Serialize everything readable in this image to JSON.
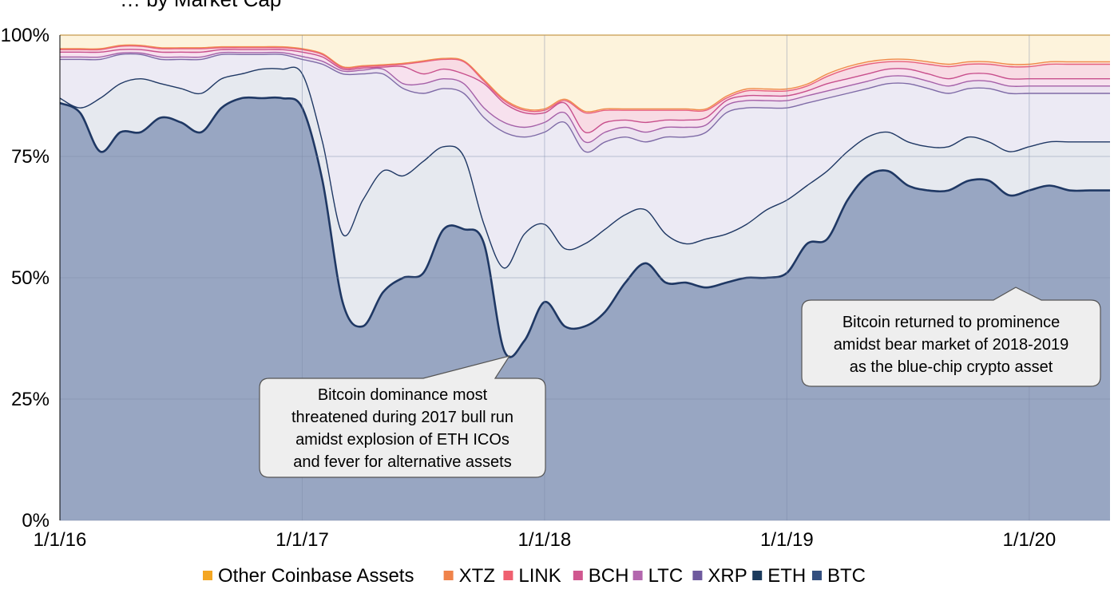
{
  "chart_data": {
    "type": "area",
    "stacked": true,
    "title_partial": "… by Market Cap",
    "ylim": [
      0,
      100
    ],
    "yticks": [
      "0%",
      "25%",
      "50%",
      "75%",
      "100%"
    ],
    "xticks": [
      "1/1/16",
      "1/1/17",
      "1/1/18",
      "1/1/19",
      "1/1/20"
    ],
    "x": [
      "1/1/16",
      "2/1/16",
      "3/1/16",
      "4/1/16",
      "5/1/16",
      "6/1/16",
      "7/1/16",
      "8/1/16",
      "9/1/16",
      "10/1/16",
      "11/1/16",
      "12/1/16",
      "1/1/17",
      "2/1/17",
      "3/1/17",
      "4/1/17",
      "5/1/17",
      "6/1/17",
      "7/1/17",
      "8/1/17",
      "9/1/17",
      "10/1/17",
      "11/1/17",
      "12/1/17",
      "1/1/18",
      "2/1/18",
      "3/1/18",
      "4/1/18",
      "5/1/18",
      "6/1/18",
      "7/1/18",
      "8/1/18",
      "9/1/18",
      "10/1/18",
      "11/1/18",
      "12/1/18",
      "1/1/19",
      "2/1/19",
      "3/1/19",
      "4/1/19",
      "5/1/19",
      "6/1/19",
      "7/1/19",
      "8/1/19",
      "9/1/19",
      "10/1/19",
      "11/1/19",
      "12/1/19",
      "1/1/20",
      "2/1/20",
      "3/1/20",
      "4/1/20",
      "5/1/20"
    ],
    "legend_position": "bottom",
    "grid": true,
    "series_cumulative_top": [
      {
        "name": "BTC",
        "color": "#98a6c2",
        "line": "#1f3864",
        "values": [
          86,
          84,
          76,
          80,
          80,
          83,
          82,
          80,
          85,
          87,
          87,
          87,
          85,
          70,
          45,
          40,
          47,
          50,
          51,
          60,
          60,
          57,
          35,
          37,
          45,
          40,
          40,
          43,
          49,
          53,
          49,
          49,
          48,
          49,
          50,
          50,
          51,
          57,
          58,
          66,
          71,
          72,
          69,
          68,
          68,
          70,
          70,
          67,
          68,
          69,
          68,
          68,
          68
        ]
      },
      {
        "name": "ETH",
        "color": "#e6e9ef",
        "line": "#1f3864",
        "values": [
          87,
          85,
          87,
          90,
          91,
          90,
          89,
          88,
          91,
          92,
          93,
          93,
          92,
          78,
          59,
          66,
          72,
          71,
          74,
          77,
          75,
          61,
          52,
          59,
          61,
          56,
          57,
          60,
          63,
          64,
          59,
          57,
          58,
          59,
          61,
          64,
          66,
          69,
          72,
          76,
          79,
          80,
          78,
          77,
          77,
          79,
          78,
          76,
          77,
          78,
          78,
          78,
          78
        ]
      },
      {
        "name": "XRP",
        "color": "#eceaf4",
        "line": "#7e6aa6",
        "values": [
          95,
          95,
          95,
          96,
          96,
          95,
          95,
          95,
          96,
          96,
          96,
          96,
          95,
          94,
          92,
          92,
          92,
          89,
          88,
          89,
          88,
          83,
          80,
          79,
          80,
          82,
          76,
          78,
          79,
          78,
          79,
          79,
          80,
          84,
          85,
          85,
          85,
          86,
          87,
          88,
          89,
          90,
          90,
          89,
          88,
          89,
          89,
          88,
          88,
          88,
          88,
          88,
          88
        ]
      },
      {
        "name": "LTC",
        "color": "#ece3f0",
        "line": "#a560a8",
        "values": [
          95.5,
          95.5,
          95.5,
          96.3,
          96.3,
          95.5,
          95.5,
          95.5,
          96.4,
          96.4,
          96.4,
          96.4,
          95.6,
          94.6,
          92.6,
          92.8,
          93,
          90,
          90,
          91,
          90,
          85,
          82,
          81,
          82,
          84,
          78,
          80,
          81,
          80,
          81,
          81,
          81.5,
          85.5,
          86.5,
          86.5,
          86.5,
          87.5,
          88.5,
          89.5,
          90.5,
          91.5,
          91.5,
          90.5,
          89.5,
          90.5,
          90.5,
          89.5,
          89.5,
          89.5,
          89.5,
          89.5,
          89.5
        ]
      },
      {
        "name": "BCH",
        "color": "#f7e1ee",
        "line": "#c84f8c",
        "values": [
          96.5,
          96.5,
          96.5,
          97,
          97,
          96.5,
          96.5,
          96.5,
          97,
          97,
          97,
          97,
          96.5,
          95.5,
          93,
          93.2,
          93.4,
          93.5,
          92,
          93,
          92,
          90,
          86,
          84,
          84,
          86,
          80,
          82,
          82.5,
          82,
          82.5,
          82.5,
          83,
          86.5,
          87.5,
          87.5,
          87.5,
          88.5,
          90,
          91,
          92,
          93,
          93,
          92,
          91,
          92,
          92,
          91,
          91,
          91,
          91,
          91,
          91
        ]
      },
      {
        "name": "LINK",
        "color": "#f8dbe4",
        "line": "#e8607e",
        "values": [
          97,
          97,
          97,
          97.7,
          97.7,
          97.2,
          97.2,
          97.2,
          97.4,
          97.4,
          97.4,
          97.4,
          97,
          96,
          93.3,
          93.5,
          93.7,
          94,
          94.5,
          95,
          94.5,
          90.5,
          86.5,
          84.5,
          84.5,
          86.5,
          84,
          84.5,
          84.5,
          84.5,
          84.5,
          84.5,
          84.5,
          87,
          88.5,
          88.5,
          88.5,
          89.5,
          91.5,
          93,
          94,
          94.5,
          94.5,
          94,
          93.5,
          94,
          94,
          93.5,
          93.5,
          94,
          94,
          94,
          94
        ]
      },
      {
        "name": "XTZ",
        "color": "#fbe5d8",
        "line": "#f08a4b",
        "values": [
          97.2,
          97.2,
          97.2,
          97.9,
          97.9,
          97.4,
          97.4,
          97.4,
          97.6,
          97.6,
          97.6,
          97.6,
          97.2,
          96.2,
          93.5,
          93.7,
          93.9,
          94.2,
          94.7,
          95.2,
          94.7,
          90.8,
          86.8,
          84.8,
          84.8,
          86.8,
          84.3,
          84.8,
          84.8,
          84.8,
          84.8,
          84.8,
          84.8,
          87.4,
          88.9,
          88.9,
          88.9,
          89.9,
          92,
          93.5,
          94.5,
          95,
          95,
          94.5,
          94,
          94.5,
          94.5,
          94,
          94,
          94.5,
          94.5,
          94.5,
          94.5
        ]
      },
      {
        "name": "Other Coinbase Assets",
        "color": "#fdf3dc",
        "line": "#f5b94a",
        "values": [
          100,
          100,
          100,
          100,
          100,
          100,
          100,
          100,
          100,
          100,
          100,
          100,
          100,
          100,
          100,
          100,
          100,
          100,
          100,
          100,
          100,
          100,
          100,
          100,
          100,
          100,
          100,
          100,
          100,
          100,
          100,
          100,
          100,
          100,
          100,
          100,
          100,
          100,
          100,
          100,
          100,
          100,
          100,
          100,
          100,
          100,
          100,
          100,
          100,
          100,
          100,
          100,
          100
        ]
      }
    ],
    "legend": [
      {
        "name": "Other Coinbase Assets",
        "color": "#f4a622"
      },
      {
        "name": "XTZ",
        "color": "#f0834a"
      },
      {
        "name": "LINK",
        "color": "#ef6070"
      },
      {
        "name": "BCH",
        "color": "#d0578f"
      },
      {
        "name": "LTC",
        "color": "#b366ae"
      },
      {
        "name": "XRP",
        "color": "#6e5a9e"
      },
      {
        "name": "ETH",
        "color": "#1b3a5c"
      },
      {
        "name": "BTC",
        "color": "#334f7f"
      }
    ],
    "annotations": [
      {
        "lines": [
          "Bitcoin dominance most",
          "threatened during 2017 bull run",
          "amidst explosion of ETH ICOs",
          "and fever for alternative assets"
        ]
      },
      {
        "lines": [
          "Bitcoin returned to prominence",
          "amidst bear market of 2018-2019",
          "as the blue-chip crypto asset"
        ]
      }
    ]
  }
}
